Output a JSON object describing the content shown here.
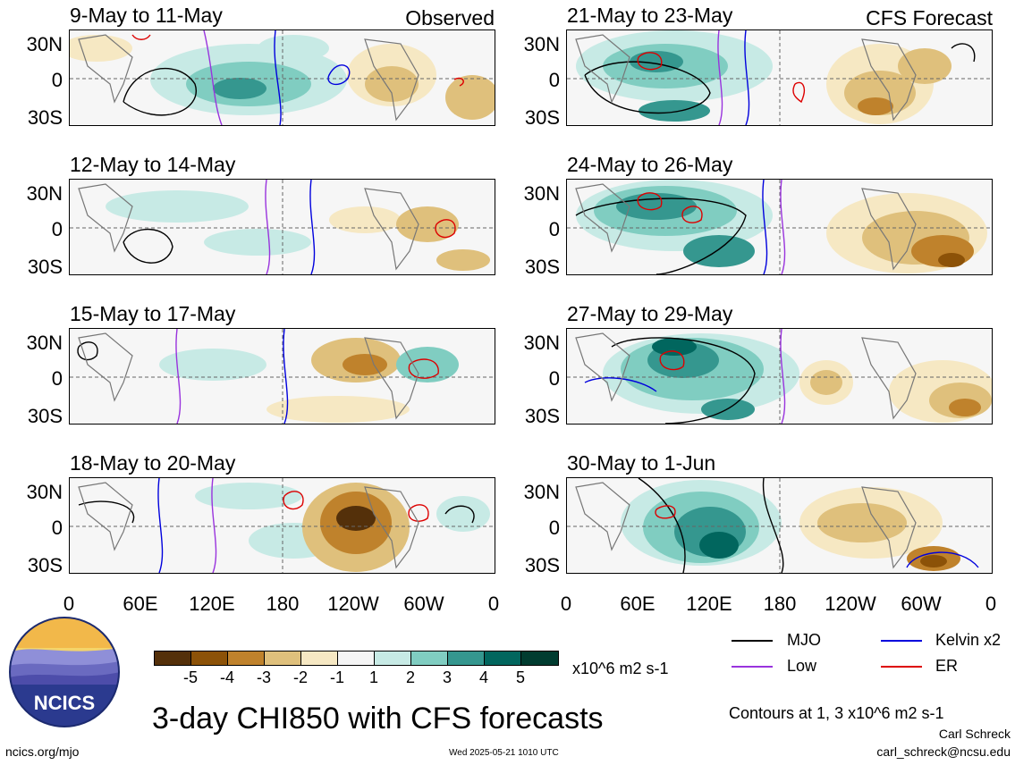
{
  "panels_left": [
    {
      "title": "9-May to 11-May",
      "label": "Observed"
    },
    {
      "title": "12-May to 14-May",
      "label": ""
    },
    {
      "title": "15-May to 17-May",
      "label": ""
    },
    {
      "title": "18-May to 20-May",
      "label": ""
    }
  ],
  "panels_right": [
    {
      "title": "21-May to 23-May",
      "label": "CFS Forecast"
    },
    {
      "title": "24-May to 26-May",
      "label": ""
    },
    {
      "title": "27-May to 29-May",
      "label": ""
    },
    {
      "title": "30-May to 1-Jun",
      "label": ""
    }
  ],
  "y_ticks": [
    "30N",
    "0",
    "30S"
  ],
  "x_ticks": [
    "0",
    "60E",
    "120E",
    "180",
    "120W",
    "60W",
    "0"
  ],
  "colorbar": {
    "tick_labels": [
      "-5",
      "-4",
      "-3",
      "-2",
      "-1",
      "1",
      "2",
      "3",
      "4",
      "5"
    ],
    "colors": [
      "#54300a",
      "#8c5208",
      "#bf822c",
      "#dfc07c",
      "#f6e8c3",
      "#f5f5f5",
      "#c7eae5",
      "#80cdc1",
      "#35978f",
      "#01665e",
      "#003c30"
    ],
    "units": "x10^6 m2 s-1"
  },
  "legend": {
    "items": [
      {
        "label": "MJO",
        "color": "#000000"
      },
      {
        "label": "Kelvin x2",
        "color": "#0000dd"
      },
      {
        "label": "Low",
        "color": "#9933dd"
      },
      {
        "label": "ER",
        "color": "#dd0000"
      }
    ],
    "contour_note": "Contours at 1, 3 x10^6 m2 s-1"
  },
  "footer": {
    "main_title": "3-day CHI850 with CFS forecasts",
    "logo_text": "NCICS",
    "url": "ncics.org/mjo",
    "timestamp": "Wed 2025-05-21 1010 UTC",
    "author": "Carl Schreck",
    "email": "carl_schreck@ncsu.edu"
  }
}
